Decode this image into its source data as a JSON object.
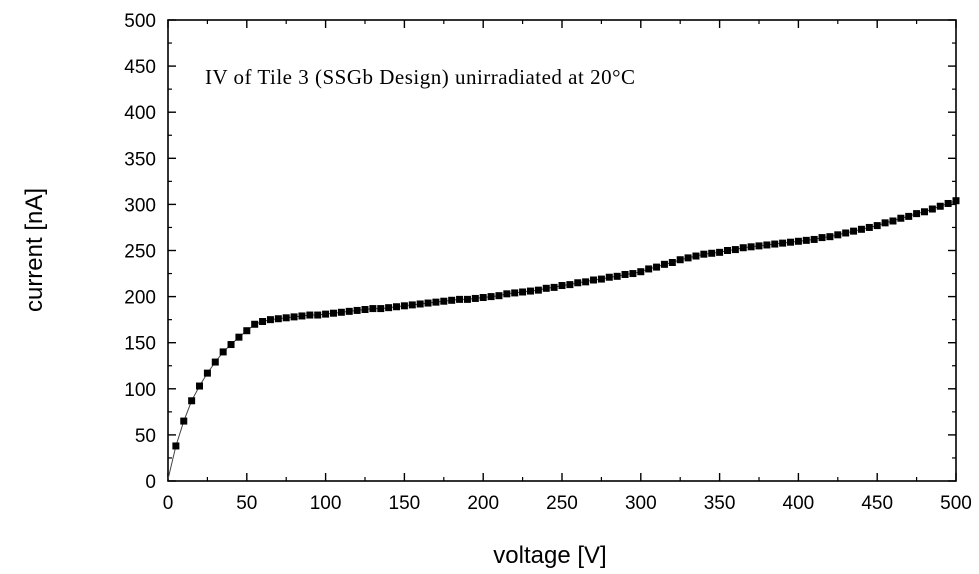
{
  "chart_data": {
    "type": "scatter",
    "title": "",
    "annotation": "IV of Tile 3 (SSGb Design) unirradiated at 20°C",
    "xlabel": "voltage [V]",
    "ylabel": "current [nA]",
    "xlim": [
      0,
      500
    ],
    "ylim": [
      0,
      500
    ],
    "xticks": [
      "0",
      "50",
      "100",
      "150",
      "200",
      "250",
      "300",
      "350",
      "400",
      "450",
      "500"
    ],
    "yticks": [
      "0",
      "50",
      "100",
      "150",
      "200",
      "250",
      "300",
      "350",
      "400",
      "450",
      "500"
    ],
    "grid": false,
    "legend": "none",
    "marker": "square",
    "color": "#000000",
    "series": [
      {
        "x": [
          0,
          5,
          10,
          15,
          20,
          25,
          30,
          35,
          40,
          45,
          50,
          55,
          60,
          65,
          70,
          75,
          80,
          85,
          90,
          95,
          100,
          105,
          110,
          115,
          120,
          125,
          130,
          135,
          140,
          145,
          150,
          155,
          160,
          165,
          170,
          175,
          180,
          185,
          190,
          195,
          200,
          205,
          210,
          215,
          220,
          225,
          230,
          235,
          240,
          245,
          250,
          255,
          260,
          265,
          270,
          275,
          280,
          285,
          290,
          295,
          300,
          305,
          310,
          315,
          320,
          325,
          330,
          335,
          340,
          345,
          350,
          355,
          360,
          365,
          370,
          375,
          380,
          385,
          390,
          395,
          400,
          405,
          410,
          415,
          420,
          425,
          430,
          435,
          440,
          445,
          450,
          455,
          460,
          465,
          470,
          475,
          480,
          485,
          490,
          495,
          500
        ],
        "y": [
          2,
          38,
          65,
          87,
          103,
          117,
          129,
          140,
          148,
          156,
          163,
          170,
          173,
          175,
          176,
          177,
          178,
          179,
          180,
          180,
          181,
          182,
          183,
          184,
          185,
          186,
          187,
          187,
          188,
          189,
          190,
          191,
          192,
          193,
          194,
          195,
          196,
          197,
          197,
          198,
          199,
          200,
          201,
          203,
          204,
          205,
          206,
          207,
          209,
          210,
          212,
          213,
          215,
          216,
          218,
          219,
          221,
          222,
          224,
          225,
          227,
          230,
          232,
          235,
          237,
          240,
          242,
          244,
          246,
          247,
          248,
          250,
          251,
          253,
          254,
          255,
          256,
          257,
          258,
          259,
          260,
          261,
          262,
          264,
          265,
          267,
          269,
          271,
          273,
          275,
          277,
          280,
          282,
          285,
          287,
          290,
          292,
          295,
          298,
          301,
          304
        ]
      }
    ]
  }
}
